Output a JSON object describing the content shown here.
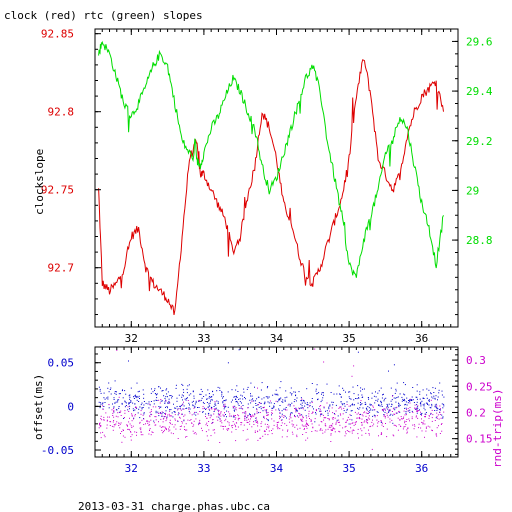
{
  "title": "clock (red) rtc (green) slopes",
  "footer": "2013-03-31 charge.phas.ubc.ca",
  "colors": {
    "clock": "#dd0000",
    "rtc": "#00dd00",
    "offset": "#0000cc",
    "rtt": "#cc00cc",
    "axis": "#000000"
  },
  "chart_data": [
    {
      "type": "line",
      "title": "clock (red) rtc (green) slopes",
      "ylabel": "clockslope",
      "ylim": [
        92.662,
        92.853
      ],
      "y2lim": [
        28.45,
        29.65
      ],
      "xlim": [
        31.5,
        36.5
      ],
      "grid": false,
      "y_ticks": [
        "92.85",
        "92.8",
        "92.75",
        "92.7"
      ],
      "y2_ticks": [
        "29.6",
        "29.4",
        "29.2",
        "29",
        "28.8"
      ],
      "x_ticks": [
        "32",
        "33",
        "34",
        "35",
        "36"
      ],
      "series": [
        {
          "name": "clock",
          "axis": "left",
          "color": "#dd0000",
          "x": [
            31.55,
            31.6,
            31.7,
            31.8,
            31.9,
            32.0,
            32.1,
            32.2,
            32.3,
            32.4,
            32.5,
            32.6,
            32.7,
            32.8,
            32.9,
            32.95,
            33.0,
            33.1,
            33.2,
            33.3,
            33.4,
            33.5,
            33.6,
            33.7,
            33.8,
            33.9,
            34.0,
            34.1,
            34.2,
            34.3,
            34.4,
            34.5,
            34.6,
            34.7,
            34.8,
            34.9,
            35.0,
            35.1,
            35.2,
            35.3,
            35.4,
            35.5,
            35.6,
            35.7,
            35.8,
            35.9,
            36.0,
            36.1,
            36.2,
            36.3
          ],
          "y": [
            92.75,
            92.69,
            92.685,
            92.69,
            92.7,
            92.72,
            92.725,
            92.7,
            92.69,
            92.685,
            92.68,
            92.67,
            92.72,
            92.77,
            92.78,
            92.76,
            92.76,
            92.75,
            92.74,
            92.73,
            92.71,
            92.72,
            92.745,
            92.765,
            92.8,
            92.79,
            92.77,
            92.74,
            92.73,
            92.71,
            92.695,
            92.69,
            92.7,
            92.715,
            92.73,
            92.745,
            92.77,
            92.81,
            92.835,
            92.81,
            92.77,
            92.76,
            92.75,
            92.76,
            92.785,
            92.8,
            92.81,
            92.815,
            92.82,
            92.8
          ]
        },
        {
          "name": "rtc",
          "axis": "right",
          "color": "#00dd00",
          "x": [
            31.55,
            31.6,
            31.7,
            31.8,
            31.9,
            32.0,
            32.1,
            32.2,
            32.3,
            32.4,
            32.5,
            32.6,
            32.7,
            32.8,
            32.9,
            32.95,
            33.0,
            33.1,
            33.2,
            33.3,
            33.4,
            33.5,
            33.6,
            33.7,
            33.8,
            33.9,
            34.0,
            34.1,
            34.2,
            34.3,
            34.4,
            34.5,
            34.6,
            34.7,
            34.8,
            34.9,
            35.0,
            35.1,
            35.2,
            35.3,
            35.4,
            35.5,
            35.6,
            35.7,
            35.8,
            35.9,
            36.0,
            36.1,
            36.2,
            36.3
          ],
          "y": [
            29.55,
            29.6,
            29.55,
            29.45,
            29.35,
            29.3,
            29.35,
            29.42,
            29.5,
            29.55,
            29.5,
            29.35,
            29.2,
            29.15,
            29.12,
            29.1,
            29.15,
            29.25,
            29.3,
            29.38,
            29.45,
            29.4,
            29.32,
            29.25,
            29.1,
            29.0,
            29.05,
            29.15,
            29.25,
            29.35,
            29.45,
            29.5,
            29.4,
            29.2,
            29.05,
            28.9,
            28.7,
            28.65,
            28.8,
            28.9,
            29.0,
            29.15,
            29.2,
            29.3,
            29.25,
            29.1,
            28.95,
            28.85,
            28.7,
            28.9
          ]
        }
      ]
    },
    {
      "type": "scatter",
      "ylabel": "offset(ms)",
      "y2label": "rnd-trip(ms)",
      "ylim": [
        -0.058,
        0.068
      ],
      "y2lim": [
        0.115,
        0.325
      ],
      "xlim": [
        31.5,
        36.5
      ],
      "grid": false,
      "y_ticks": [
        "0.05",
        "0",
        "-0.05"
      ],
      "y2_ticks": [
        "0.3",
        "0.25",
        "0.2",
        "0.15"
      ],
      "x_ticks": [
        "32",
        "33",
        "34",
        "35",
        "36"
      ],
      "series": [
        {
          "name": "offset",
          "axis": "left",
          "color": "#0000cc",
          "x_range": [
            31.55,
            36.3
          ],
          "y_band": [
            -0.025,
            0.03
          ],
          "y_center": 0.005,
          "count": 900
        },
        {
          "name": "rnd-trip",
          "axis": "right",
          "color": "#cc00cc",
          "x_range": [
            31.55,
            36.3
          ],
          "y_band": [
            0.14,
            0.24
          ],
          "y_center": 0.185,
          "count": 900
        }
      ]
    }
  ]
}
